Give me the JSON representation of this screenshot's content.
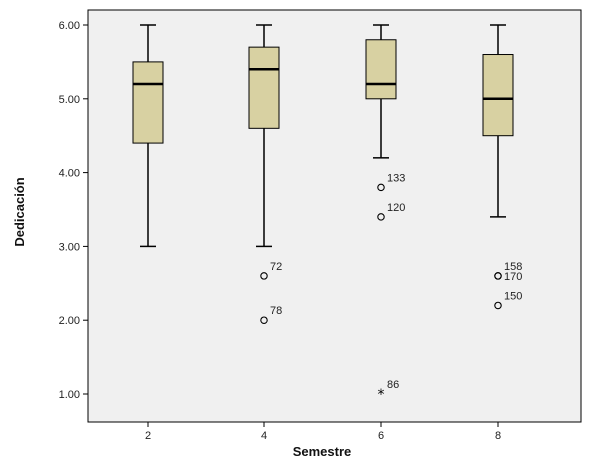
{
  "chart_data": {
    "type": "boxplot",
    "title": "",
    "xlabel": "Semestre",
    "ylabel": "Dedicación",
    "ylim": [
      0.6,
      6.3
    ],
    "yticks": [
      "1.00",
      "2.00",
      "3.00",
      "4.00",
      "5.00",
      "6.00"
    ],
    "categories": [
      "2",
      "4",
      "6",
      "8"
    ],
    "grid": false,
    "colors": {
      "box_fill": "#d8d1a2",
      "plot_bg": "#f0f0f0",
      "stroke": "#000000"
    },
    "boxes": [
      {
        "category": "2",
        "whisker_low": 3.0,
        "q1": 4.4,
        "median": 5.2,
        "q3": 5.5,
        "whisker_high": 6.0,
        "outliers": []
      },
      {
        "category": "4",
        "whisker_low": 3.0,
        "q1": 4.6,
        "median": 5.4,
        "q3": 5.7,
        "whisker_high": 6.0,
        "outliers": [
          {
            "value": 2.6,
            "label": "72",
            "marker": "circle"
          },
          {
            "value": 2.0,
            "label": "78",
            "marker": "circle"
          }
        ]
      },
      {
        "category": "6",
        "whisker_low": 4.2,
        "q1": 5.0,
        "median": 5.2,
        "q3": 5.8,
        "whisker_high": 6.0,
        "outliers": [
          {
            "value": 3.8,
            "label": "133",
            "marker": "circle"
          },
          {
            "value": 3.4,
            "label": "120",
            "marker": "circle"
          },
          {
            "value": 1.0,
            "label": "86",
            "marker": "star"
          }
        ]
      },
      {
        "category": "8",
        "whisker_low": 3.4,
        "q1": 4.5,
        "median": 5.0,
        "q3": 5.6,
        "whisker_high": 6.0,
        "outliers": [
          {
            "value": 2.6,
            "label": "158",
            "marker": "circle"
          },
          {
            "value": 2.6,
            "label": "170",
            "marker": "circle"
          },
          {
            "value": 2.2,
            "label": "150",
            "marker": "circle"
          }
        ]
      }
    ]
  }
}
